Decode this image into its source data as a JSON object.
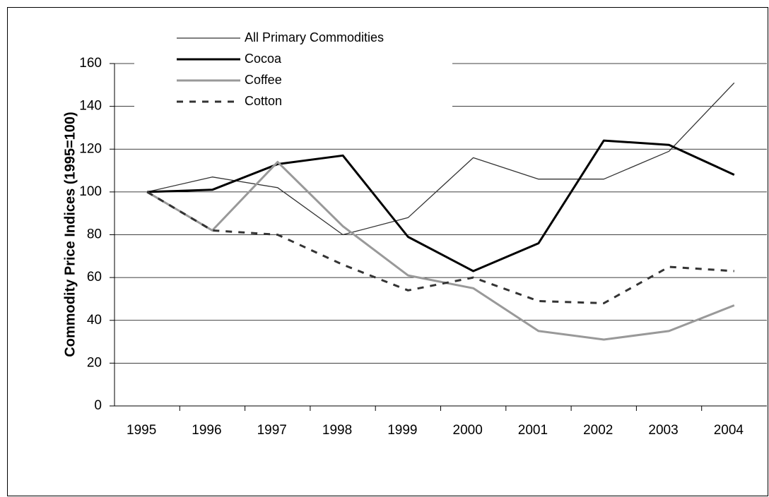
{
  "chart_data": {
    "type": "line",
    "ylabel": "Commodity Price Indices (1995=100)",
    "categories": [
      "1995",
      "1996",
      "1997",
      "1998",
      "1999",
      "2000",
      "2001",
      "2002",
      "2003",
      "2004"
    ],
    "series": [
      {
        "name": "All Primary Commodities",
        "color": "#333333",
        "width": 1.3,
        "dashed": false,
        "values": [
          100,
          107,
          102,
          80,
          88,
          116,
          106,
          106,
          119,
          151
        ]
      },
      {
        "name": "Cocoa",
        "color": "#000000",
        "width": 3,
        "dashed": false,
        "values": [
          100,
          101,
          113,
          117,
          79,
          63,
          76,
          124,
          122,
          108
        ]
      },
      {
        "name": "Coffee",
        "color": "#999999",
        "width": 3,
        "dashed": false,
        "values": [
          100,
          82,
          114,
          84,
          61,
          55,
          35,
          31,
          35,
          47
        ]
      },
      {
        "name": "Cotton",
        "color": "#333333",
        "width": 3,
        "dashed": true,
        "values": [
          100,
          82,
          80,
          66,
          54,
          60,
          49,
          48,
          65,
          63
        ]
      }
    ],
    "ylim": [
      0,
      160
    ],
    "yticks": [
      0,
      20,
      40,
      60,
      80,
      100,
      120,
      140,
      160
    ],
    "grid": true,
    "legend": "top-left"
  }
}
